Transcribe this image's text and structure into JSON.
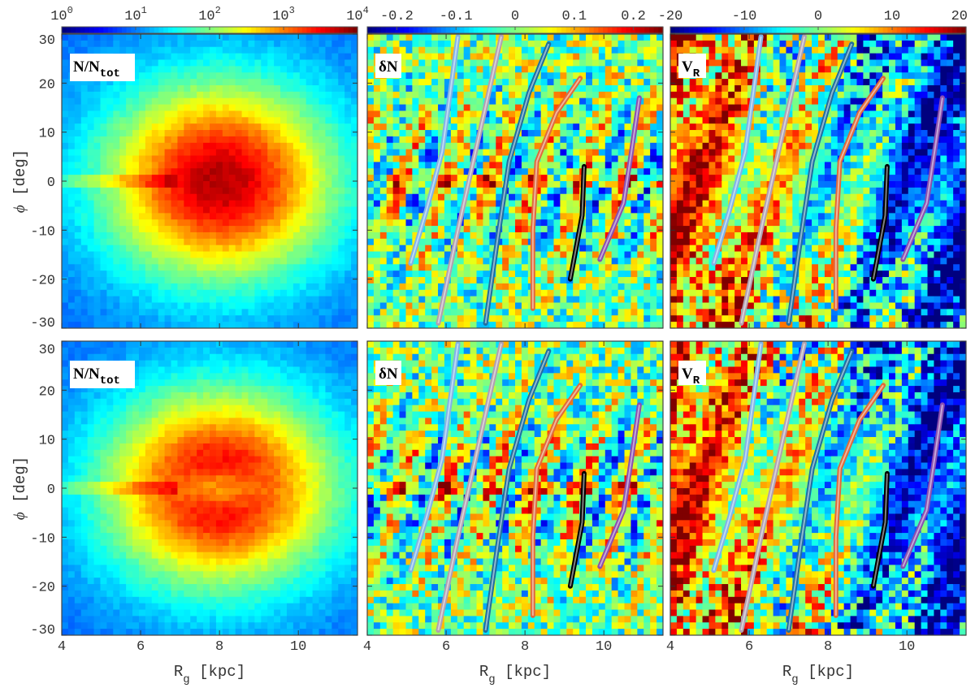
{
  "chart_data": {
    "type": "heatmap",
    "xlabel": "R",
    "xlabel_sub": "g",
    "xlabel_unit": "[kpc]",
    "ylabel": "ϕ",
    "ylabel_unit": "[deg]",
    "xlim": [
      4,
      11.5
    ],
    "ylim": [
      -30,
      30
    ],
    "xticks": [
      "4",
      "6",
      "8",
      "10"
    ],
    "yticks": [
      "30",
      "20",
      "10",
      "0",
      "-10",
      "-20",
      "-30"
    ],
    "colormap": "jet",
    "columns": [
      {
        "label": "N/N",
        "label_sub": "tot",
        "colorbar_range": [
          1,
          10000
        ],
        "colorbar_scale": "log",
        "colorbar_ticks": [
          "10",
          "10",
          "10",
          "10",
          "10"
        ],
        "colorbar_exps": [
          "0",
          "1",
          "2",
          "3",
          "4"
        ]
      },
      {
        "label": "δN",
        "label_sub": "",
        "colorbar_range": [
          -0.25,
          0.25
        ],
        "colorbar_ticks": [
          "-0.2",
          "-0.1",
          "0",
          "0.1",
          "0.2"
        ]
      },
      {
        "label": "V",
        "label_sub": "R",
        "colorbar_range": [
          -20,
          20
        ],
        "colorbar_ticks": [
          "-20",
          "-10",
          "0",
          "10",
          "20"
        ]
      }
    ],
    "rows": 2,
    "overlay_curves": [
      {
        "color": "#7fb3e6",
        "points": [
          [
            5.1,
            -16.8
          ],
          [
            5.5,
            -6
          ],
          [
            5.9,
            6
          ],
          [
            6.3,
            29.5
          ]
        ]
      },
      {
        "color": "#b0a0b0",
        "points": [
          [
            5.8,
            -29
          ],
          [
            6.3,
            -10
          ],
          [
            6.8,
            8
          ],
          [
            7.4,
            29.5
          ]
        ]
      },
      {
        "color": "#1f6fa0",
        "points": [
          [
            7.0,
            -29
          ],
          [
            7.3,
            -12
          ],
          [
            7.6,
            4
          ],
          [
            8.1,
            18
          ],
          [
            8.6,
            28
          ]
        ]
      },
      {
        "color": "#e06a3a",
        "points": [
          [
            8.2,
            -26
          ],
          [
            8.2,
            -10
          ],
          [
            8.3,
            4
          ],
          [
            8.8,
            14
          ],
          [
            9.4,
            21
          ]
        ]
      },
      {
        "color": "#000000",
        "points": [
          [
            9.15,
            -20
          ],
          [
            9.45,
            -7
          ],
          [
            9.5,
            3
          ]
        ]
      },
      {
        "color": "#8a4fb0",
        "points": [
          [
            9.9,
            -16
          ],
          [
            10.5,
            -4.5
          ],
          [
            10.7,
            6
          ],
          [
            10.9,
            17
          ]
        ]
      }
    ]
  }
}
